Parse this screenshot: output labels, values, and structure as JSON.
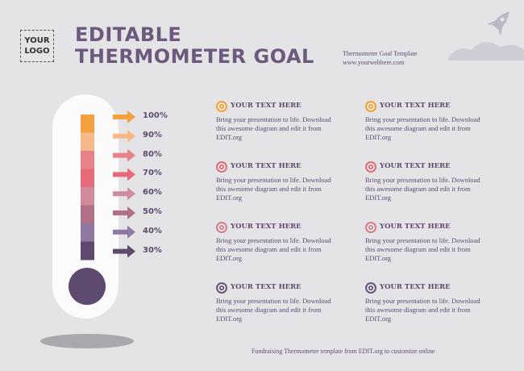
{
  "logo": {
    "lines": [
      "YOUR",
      "LOGO"
    ]
  },
  "header": {
    "title_lines": [
      "EDITABLE",
      "THERMOMETER GOAL"
    ],
    "subtitle": "Thermometer Goal Template",
    "website": "www.yourwebhere.com"
  },
  "thermometer": {
    "labels": [
      "100%",
      "90%",
      "80%",
      "70%",
      "60%",
      "50%",
      "40%",
      "30%"
    ]
  },
  "items": [
    {
      "title": "YOUR TEXT HERE",
      "lines": [
        "Bring your presentation to life. Download",
        "this awesome diagram and edit it from",
        "EDIT.org"
      ]
    },
    {
      "title": "YOUR TEXT HERE",
      "lines": [
        "Bring your presentation to life. Download",
        "this awesome diagram and edit it from",
        "EDIT.org"
      ]
    },
    {
      "title": "YOUR TEXT HERE",
      "lines": [
        "Bring your presentation to life. Download",
        "this awesome diagram and edit it from",
        "EDIT.org"
      ]
    },
    {
      "title": "YOUR TEXT HERE",
      "lines": [
        "Bring your presentation to life. Download",
        "this awesome diagram and edit it from",
        "EDIT.org"
      ]
    },
    {
      "title": "YOUR TEXT HERE",
      "lines": [
        "Bring your presentation to life. Download",
        "this awesome diagram and edit it from",
        "EDIT.org"
      ]
    },
    {
      "title": "YOUR TEXT HERE",
      "lines": [
        "Bring your presentation to life. Download",
        "this awesome diagram and edit it from",
        "EDIT.org"
      ]
    },
    {
      "title": "YOUR TEXT HERE",
      "lines": [
        "Bring your presentation to life. Download",
        "this awesome diagram and edit it from",
        "EDIT.org"
      ]
    },
    {
      "title": "YOUR TEXT HERE",
      "lines": [
        "Bring your presentation to life. Download",
        "this awesome diagram and edit it from",
        "EDIT.org"
      ]
    }
  ],
  "footer": "Fundraising Thermometer template from EDIT.org to customize online"
}
